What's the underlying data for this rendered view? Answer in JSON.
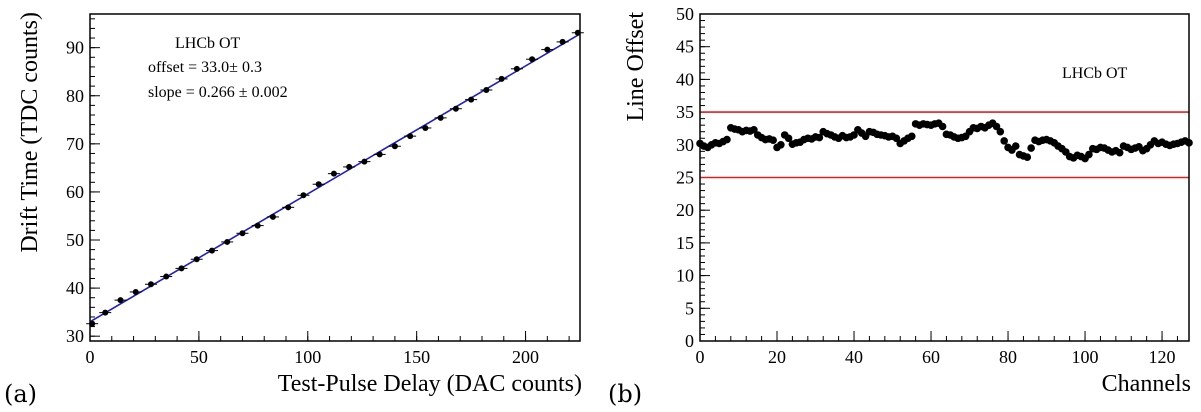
{
  "chart_data": [
    {
      "type": "scatter",
      "panel_label": "(a)",
      "xlabel": "Test-Pulse Delay (DAC counts)",
      "ylabel": "Drift Time (TDC counts)",
      "xlim": [
        0,
        225
      ],
      "ylim": [
        29,
        97
      ],
      "xticks": [
        0,
        50,
        100,
        150,
        200
      ],
      "yticks": [
        30,
        40,
        50,
        60,
        70,
        80,
        90
      ],
      "annotations": [
        "LHCb OT",
        "offset = 33.0± 0.3",
        "slope = 0.266 ± 0.002"
      ],
      "fit": {
        "offset": 33.0,
        "slope": 0.266,
        "color": "#1f1fbf"
      },
      "points": {
        "x": [
          1,
          7,
          14,
          21,
          28,
          35,
          42,
          49,
          56,
          63,
          70,
          77,
          84,
          91,
          98,
          105,
          112,
          119,
          126,
          133,
          140,
          147,
          154,
          161,
          168,
          175,
          182,
          189,
          196,
          203,
          210,
          217,
          224
        ],
        "y": [
          32.6,
          34.9,
          37.5,
          39.2,
          40.8,
          42.4,
          44.1,
          46.0,
          47.8,
          49.6,
          51.4,
          53.0,
          54.8,
          56.8,
          59.3,
          61.6,
          63.8,
          65.2,
          66.3,
          67.8,
          69.5,
          71.6,
          73.3,
          75.4,
          77.3,
          79.2,
          81.2,
          83.5,
          85.6,
          87.6,
          89.6,
          91.2,
          93.1
        ]
      },
      "marker_color": "#000000"
    },
    {
      "type": "scatter",
      "panel_label": "(b)",
      "xlabel": "Channels",
      "ylabel": "Line Offset",
      "xlim": [
        0,
        127
      ],
      "ylim": [
        0,
        50
      ],
      "xticks": [
        0,
        20,
        40,
        60,
        80,
        100,
        120
      ],
      "yticks": [
        0,
        5,
        10,
        15,
        20,
        25,
        30,
        35,
        40,
        45,
        50
      ],
      "annotations": [
        "LHCb OT"
      ],
      "hlines": [
        25,
        35
      ],
      "hline_color": "#e02020",
      "points": {
        "x": [
          0,
          1,
          2,
          3,
          4,
          5,
          6,
          7,
          8,
          9,
          10,
          11,
          12,
          13,
          14,
          15,
          16,
          17,
          18,
          19,
          20,
          21,
          22,
          23,
          24,
          25,
          26,
          27,
          28,
          29,
          30,
          31,
          32,
          33,
          34,
          35,
          36,
          37,
          38,
          39,
          40,
          41,
          42,
          43,
          44,
          45,
          46,
          47,
          48,
          49,
          50,
          51,
          52,
          53,
          54,
          55,
          56,
          57,
          58,
          59,
          60,
          61,
          62,
          63,
          64,
          65,
          66,
          67,
          68,
          69,
          70,
          71,
          72,
          73,
          74,
          75,
          76,
          77,
          78,
          79,
          80,
          81,
          82,
          83,
          84,
          85,
          86,
          87,
          88,
          89,
          90,
          91,
          92,
          93,
          94,
          95,
          96,
          97,
          98,
          99,
          100,
          101,
          102,
          103,
          104,
          105,
          106,
          107,
          108,
          109,
          110,
          111,
          112,
          113,
          114,
          115,
          116,
          117,
          118,
          119,
          120,
          121,
          122,
          123,
          124,
          125,
          126,
          127
        ],
        "y": [
          30.2,
          29.8,
          29.6,
          30.0,
          30.3,
          30.2,
          30.5,
          30.8,
          32.6,
          32.4,
          32.3,
          32.0,
          32.2,
          32.1,
          32.3,
          31.5,
          31.1,
          30.8,
          30.9,
          30.7,
          29.6,
          30.0,
          31.5,
          31.0,
          30.1,
          30.3,
          30.4,
          30.8,
          31.0,
          30.9,
          31.2,
          31.1,
          32.0,
          31.7,
          31.5,
          31.2,
          31.0,
          31.4,
          31.1,
          31.2,
          31.5,
          32.3,
          31.8,
          31.3,
          32.0,
          31.9,
          31.6,
          31.5,
          31.4,
          31.2,
          31.3,
          31.0,
          30.2,
          30.6,
          31.0,
          31.3,
          33.2,
          33.0,
          33.2,
          33.1,
          33.0,
          33.2,
          33.3,
          32.8,
          31.6,
          31.5,
          31.2,
          31.0,
          31.1,
          31.3,
          32.0,
          32.6,
          32.5,
          32.8,
          32.6,
          33.0,
          33.3,
          32.8,
          32.0,
          30.6,
          29.6,
          29.2,
          29.8,
          28.5,
          28.3,
          28.1,
          29.5,
          30.7,
          30.5,
          30.7,
          30.8,
          30.6,
          30.3,
          29.8,
          29.4,
          28.9,
          28.2,
          28.0,
          28.4,
          28.2,
          27.9,
          28.5,
          29.4,
          29.3,
          29.6,
          29.5,
          29.2,
          28.9,
          29.1,
          28.8,
          29.8,
          29.6,
          29.3,
          29.5,
          29.7,
          29.1,
          29.4,
          30.0,
          30.6,
          30.2,
          30.4,
          30.1,
          29.9,
          30.1,
          30.2,
          30.4,
          30.6,
          30.3
        ]
      },
      "marker_color": "#000000"
    }
  ]
}
